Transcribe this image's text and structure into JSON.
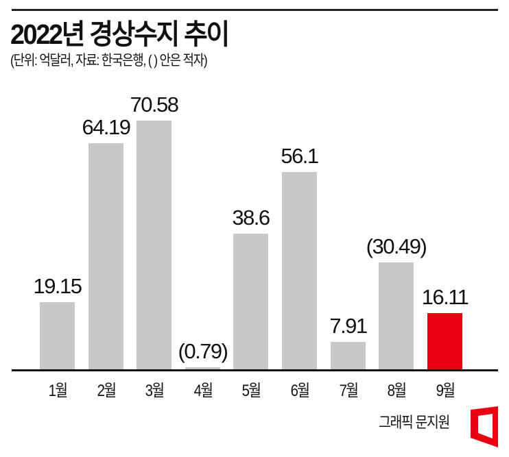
{
  "header": {
    "title": "2022년 경상수지 추이",
    "subtitle": "(단위: 억달러, 자료: 한국은행, ( ) 안은 적자)"
  },
  "credit": {
    "text": "그래픽 문지원",
    "logo_icon": "red-trapezoid-frame-logo",
    "logo_color": "#e60012"
  },
  "colors": {
    "bar": "#c8c8ca",
    "highlight": "#e60012",
    "axis": "#111111"
  },
  "chart_data": {
    "type": "bar",
    "title": "2022년 경상수지 추이",
    "subtitle": "(단위: 억달러, 자료: 한국은행, ( ) 안은 적자)",
    "xlabel": "",
    "ylabel": "",
    "unit": "억달러",
    "categories": [
      "1월",
      "2월",
      "3월",
      "4월",
      "5월",
      "6월",
      "7월",
      "8월",
      "9월"
    ],
    "values": [
      19.15,
      64.19,
      70.58,
      -0.79,
      38.6,
      56.1,
      7.91,
      -30.49,
      16.11
    ],
    "bar_magnitudes": [
      19.15,
      64.19,
      70.58,
      0.79,
      38.6,
      56.1,
      7.91,
      30.49,
      16.11
    ],
    "data_labels": [
      "19.15",
      "64.19",
      "70.58",
      "(0.79)",
      "38.6",
      "56.1",
      "7.91",
      "(30.49)",
      "16.11"
    ],
    "highlight_index": 8,
    "annotations": [
      "( ) 안은 적자 — parentheses denote deficit"
    ],
    "grid": false,
    "legend": "none",
    "ylim": [
      0,
      75
    ]
  }
}
